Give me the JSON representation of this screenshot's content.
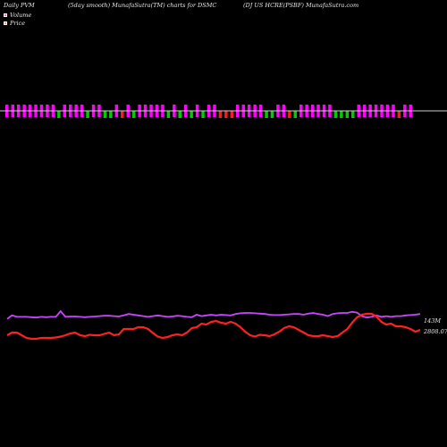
{
  "header": {
    "left": "Daily PVM",
    "center": "(5day smooth) MunafaSutra(TM) charts for DSMC",
    "right": "(DJ US HCRE(PSBF) MunafaSutra.com"
  },
  "legend": {
    "volume_label": "Volume",
    "price_label": "Price"
  },
  "colors": {
    "background": "#000000",
    "up": "#ff00ff",
    "down_green": "#00cc00",
    "down_red": "#ff1a1a",
    "volume_line": "#cc44ff",
    "price_line": "#ff2020",
    "baseline": "#cccccc"
  },
  "chart_data": {
    "type": "line",
    "volume_end_label": "143M",
    "price_end_label": "2808.07",
    "pvm_bars": [
      {
        "dir": "both",
        "color": "up"
      },
      {
        "dir": "both",
        "color": "up"
      },
      {
        "dir": "both",
        "color": "up"
      },
      {
        "dir": "both",
        "color": "up"
      },
      {
        "dir": "both",
        "color": "up"
      },
      {
        "dir": "both",
        "color": "up"
      },
      {
        "dir": "both",
        "color": "up"
      },
      {
        "dir": "both",
        "color": "up"
      },
      {
        "dir": "both",
        "color": "up"
      },
      {
        "dir": "down",
        "color": "down_green"
      },
      {
        "dir": "both",
        "color": "up"
      },
      {
        "dir": "both",
        "color": "up"
      },
      {
        "dir": "both",
        "color": "up"
      },
      {
        "dir": "both",
        "color": "up"
      },
      {
        "dir": "down",
        "color": "down_green"
      },
      {
        "dir": "both",
        "color": "up"
      },
      {
        "dir": "both",
        "color": "up"
      },
      {
        "dir": "down",
        "color": "down_green"
      },
      {
        "dir": "down",
        "color": "down_green"
      },
      {
        "dir": "both",
        "color": "up"
      },
      {
        "dir": "down",
        "color": "down_red"
      },
      {
        "dir": "both",
        "color": "up"
      },
      {
        "dir": "down",
        "color": "down_green"
      },
      {
        "dir": "both",
        "color": "up"
      },
      {
        "dir": "both",
        "color": "up"
      },
      {
        "dir": "both",
        "color": "up"
      },
      {
        "dir": "both",
        "color": "up"
      },
      {
        "dir": "both",
        "color": "up"
      },
      {
        "dir": "down",
        "color": "down_green"
      },
      {
        "dir": "both",
        "color": "up"
      },
      {
        "dir": "down",
        "color": "down_green"
      },
      {
        "dir": "both",
        "color": "up"
      },
      {
        "dir": "down",
        "color": "down_green"
      },
      {
        "dir": "both",
        "color": "up"
      },
      {
        "dir": "down",
        "color": "down_green"
      },
      {
        "dir": "both",
        "color": "up"
      },
      {
        "dir": "both",
        "color": "up"
      },
      {
        "dir": "down",
        "color": "down_red"
      },
      {
        "dir": "down",
        "color": "down_red"
      },
      {
        "dir": "down",
        "color": "down_red"
      },
      {
        "dir": "both",
        "color": "up"
      },
      {
        "dir": "both",
        "color": "up"
      },
      {
        "dir": "both",
        "color": "up"
      },
      {
        "dir": "both",
        "color": "up"
      },
      {
        "dir": "both",
        "color": "up"
      },
      {
        "dir": "down",
        "color": "down_green"
      },
      {
        "dir": "down",
        "color": "down_green"
      },
      {
        "dir": "both",
        "color": "up"
      },
      {
        "dir": "both",
        "color": "up"
      },
      {
        "dir": "down",
        "color": "down_red"
      },
      {
        "dir": "down",
        "color": "down_green"
      },
      {
        "dir": "both",
        "color": "up"
      },
      {
        "dir": "both",
        "color": "up"
      },
      {
        "dir": "both",
        "color": "up"
      },
      {
        "dir": "both",
        "color": "up"
      },
      {
        "dir": "both",
        "color": "up"
      },
      {
        "dir": "both",
        "color": "up"
      },
      {
        "dir": "down",
        "color": "down_green"
      },
      {
        "dir": "down",
        "color": "down_green"
      },
      {
        "dir": "down",
        "color": "down_green"
      },
      {
        "dir": "down",
        "color": "down_green"
      },
      {
        "dir": "both",
        "color": "up"
      },
      {
        "dir": "both",
        "color": "up"
      },
      {
        "dir": "both",
        "color": "up"
      },
      {
        "dir": "both",
        "color": "up"
      },
      {
        "dir": "both",
        "color": "up"
      },
      {
        "dir": "both",
        "color": "up"
      },
      {
        "dir": "both",
        "color": "up"
      },
      {
        "dir": "down",
        "color": "down_red"
      },
      {
        "dir": "both",
        "color": "up"
      },
      {
        "dir": "both",
        "color": "up"
      }
    ],
    "volume_series": [
      0.58,
      0.68,
      0.64,
      0.64,
      0.64,
      0.63,
      0.62,
      0.64,
      0.63,
      0.64,
      0.64,
      0.8,
      0.64,
      0.65,
      0.65,
      0.64,
      0.63,
      0.64,
      0.65,
      0.66,
      0.67,
      0.67,
      0.66,
      0.65,
      0.68,
      0.72,
      0.7,
      0.68,
      0.66,
      0.64,
      0.66,
      0.68,
      0.66,
      0.64,
      0.65,
      0.67,
      0.66,
      0.64,
      0.63,
      0.7,
      0.66,
      0.68,
      0.7,
      0.68,
      0.7,
      0.69,
      0.68,
      0.72,
      0.74,
      0.75,
      0.75,
      0.74,
      0.73,
      0.72,
      0.7,
      0.69,
      0.69,
      0.7,
      0.71,
      0.72,
      0.72,
      0.7,
      0.73,
      0.75,
      0.72,
      0.7,
      0.66,
      0.72,
      0.74,
      0.75,
      0.75,
      0.78,
      0.76,
      0.66,
      0.62,
      0.64,
      0.68,
      0.64,
      0.66,
      0.64,
      0.66,
      0.66,
      0.68,
      0.69,
      0.7,
      0.72
    ],
    "price_series": [
      0.3,
      0.36,
      0.36,
      0.3,
      0.24,
      0.22,
      0.22,
      0.24,
      0.24,
      0.24,
      0.25,
      0.27,
      0.3,
      0.34,
      0.36,
      0.3,
      0.28,
      0.31,
      0.3,
      0.3,
      0.33,
      0.36,
      0.3,
      0.32,
      0.44,
      0.44,
      0.44,
      0.48,
      0.48,
      0.44,
      0.35,
      0.27,
      0.24,
      0.26,
      0.3,
      0.32,
      0.3,
      0.36,
      0.46,
      0.48,
      0.56,
      0.54,
      0.6,
      0.62,
      0.58,
      0.56,
      0.6,
      0.56,
      0.48,
      0.38,
      0.3,
      0.27,
      0.31,
      0.3,
      0.28,
      0.32,
      0.38,
      0.46,
      0.5,
      0.48,
      0.42,
      0.36,
      0.3,
      0.28,
      0.28,
      0.3,
      0.28,
      0.26,
      0.28,
      0.36,
      0.44,
      0.58,
      0.7,
      0.76,
      0.78,
      0.78,
      0.72,
      0.6,
      0.54,
      0.56,
      0.5,
      0.5,
      0.48,
      0.44,
      0.38,
      0.42
    ]
  }
}
